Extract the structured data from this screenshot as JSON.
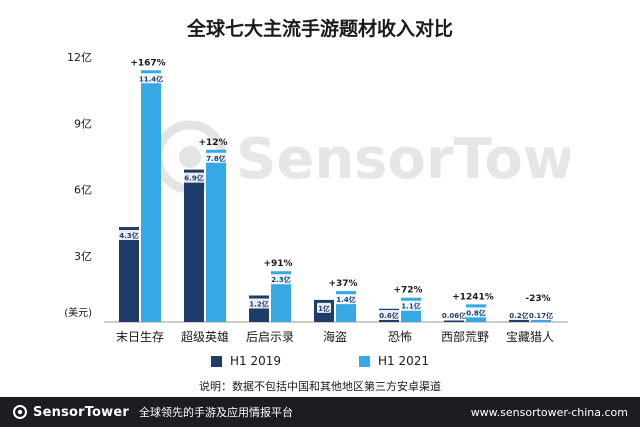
{
  "chart_data": {
    "type": "bar",
    "title": "全球七大主流手游题材收入对比",
    "ylabel": "(美元)",
    "ylim": [
      0,
      12
    ],
    "yticks": [
      {
        "value": 3,
        "label": "3亿"
      },
      {
        "value": 6,
        "label": "6亿"
      },
      {
        "value": 9,
        "label": "9亿"
      },
      {
        "value": 12,
        "label": "12亿"
      }
    ],
    "categories": [
      "末日生存",
      "超级英雄",
      "后启示录",
      "海盗",
      "恐怖",
      "西部荒野",
      "宝藏猎人"
    ],
    "series": [
      {
        "name": "H1 2019",
        "color": "#1f3d6b",
        "values": [
          4.3,
          6.9,
          1.2,
          1.0,
          0.6,
          0.06,
          0.2
        ],
        "labels": [
          "4.3亿",
          "6.9亿",
          "1.2亿",
          "1亿",
          "0.6亿",
          "0.06亿",
          "0.2亿"
        ]
      },
      {
        "name": "H1 2021",
        "color": "#36a9e5",
        "values": [
          11.4,
          7.8,
          2.3,
          1.4,
          1.1,
          0.8,
          0.17
        ],
        "labels": [
          "11.4亿",
          "7.8亿",
          "2.3亿",
          "1.4亿",
          "1.1亿",
          "0.8亿",
          "0.17亿"
        ]
      }
    ],
    "growth": [
      "+167%",
      "+12%",
      "+91%",
      "+37%",
      "+72%",
      "+1241%",
      "-23%"
    ],
    "legend_position": "bottom",
    "grid": false
  },
  "watermark": "SensorTower",
  "note": "说明：数据不包括中国和其他地区第三方安卓渠道",
  "footer": {
    "brand": "SensorTower",
    "tagline": "全球领先的手游及应用情报平台",
    "url": "www.sensortower-china.com"
  }
}
